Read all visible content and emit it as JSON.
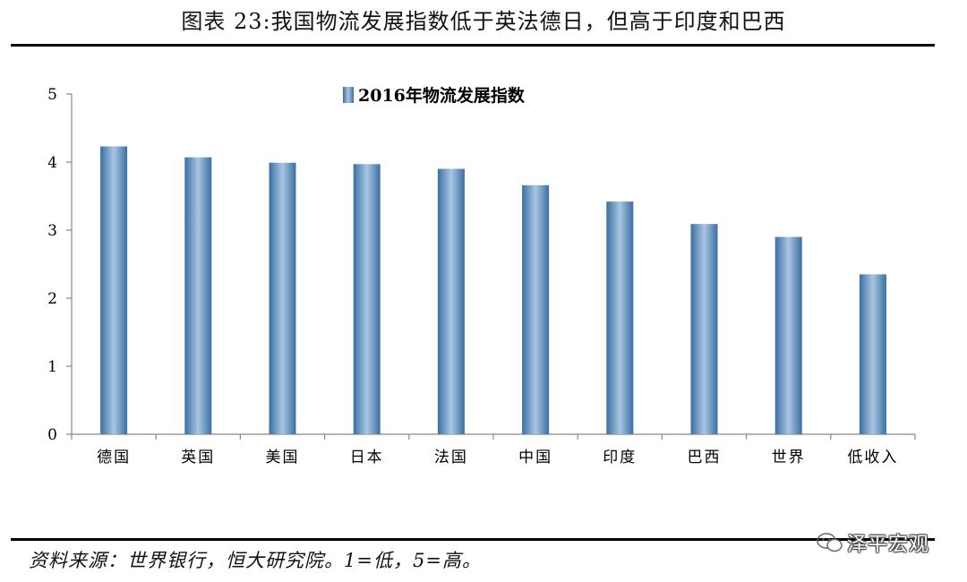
{
  "figure": {
    "title": "图表 23:我国物流发展指数低于英法德日，但高于印度和巴西",
    "source": "资料来源：世界银行，恒大研究院。1=低，5=高。"
  },
  "watermark": {
    "icon": "wechat-icon",
    "text": "泽平宏观"
  },
  "chart_data": {
    "type": "bar",
    "title": "",
    "xlabel": "",
    "ylabel": "",
    "ylim": [
      0,
      5
    ],
    "yticks": [
      "0",
      "1",
      "2",
      "3",
      "4",
      "5"
    ],
    "grid": false,
    "legend_position": "top-center",
    "categories": [
      "德国",
      "英国",
      "美国",
      "日本",
      "法国",
      "中国",
      "印度",
      "巴西",
      "世界",
      "低收入"
    ],
    "series": [
      {
        "name": "2016年物流发展指数",
        "values": [
          4.23,
          4.07,
          3.99,
          3.97,
          3.9,
          3.66,
          3.42,
          3.09,
          2.9,
          2.35
        ],
        "color": "#5b8fc0"
      }
    ]
  }
}
